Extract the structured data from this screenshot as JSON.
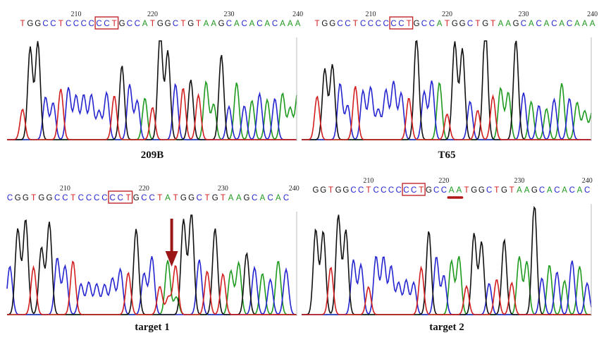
{
  "colors": {
    "A": "#1e9a1e",
    "C": "#2424d0",
    "G": "#111111",
    "T": "#d21e1e",
    "box": "#c0282d",
    "arrow": "#9b1616",
    "underline": "#b01818"
  },
  "panels": [
    {
      "label": "209B",
      "sequence": "TGGCCTCCCCCCTGCCATGGCTGTAAGCACACACAAA",
      "ticks": [
        "210",
        "220",
        "230",
        "240"
      ],
      "boxed_bases": "CCT",
      "marker": "none",
      "highlighted_bases": ""
    },
    {
      "label": "T65",
      "sequence": "TGGCCTCCCCCCTGCCATGGCTGTAAGCACACACAAA",
      "ticks": [
        "210",
        "220",
        "230",
        "240"
      ],
      "boxed_bases": "CCT",
      "marker": "none",
      "highlighted_bases": ""
    },
    {
      "label": "target 1",
      "sequence": "CGGTGGCCTCCCCCCTGCCTATGGCTGTAAGCACAC",
      "ticks": [
        "210",
        "220",
        "230",
        "240"
      ],
      "boxed_bases": "CCT",
      "marker": "down-arrow",
      "highlighted_bases": ""
    },
    {
      "label": "target 2",
      "sequence": "GGTGGCCTCCCCCCTGCCAATGGCTGTAAGCACACAC",
      "ticks": [
        "210",
        "220",
        "230",
        "240"
      ],
      "boxed_bases": "CCT",
      "marker": "underline",
      "highlighted_bases": "AA"
    }
  ]
}
